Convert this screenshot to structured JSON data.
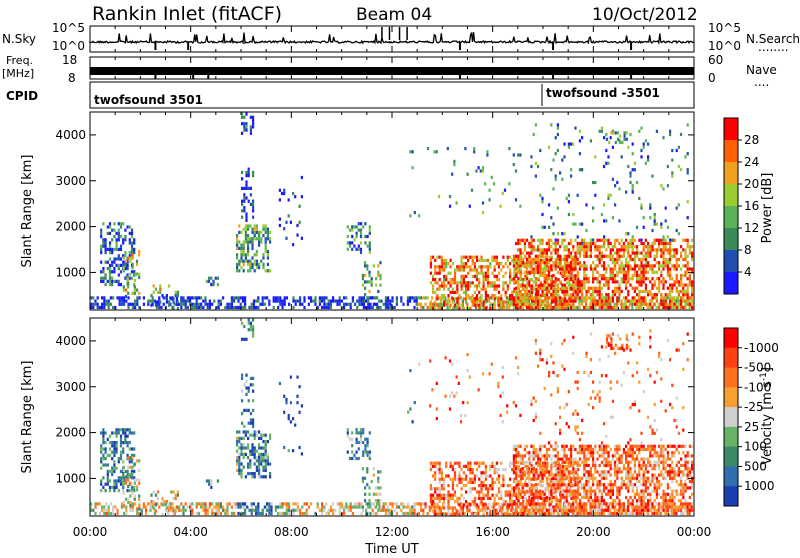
{
  "header": {
    "station": "Rankin Inlet (fitACF)",
    "beam": "Beam 04",
    "date": "10/Oct/2012"
  },
  "noise_panel": {
    "left_label": "N.Sky",
    "right_label": "N.Search",
    "left_ticks": [
      "10^5",
      "10^0"
    ],
    "right_ticks": [
      "10^5",
      "10^0"
    ],
    "right_legend_dots": "........"
  },
  "freq_panel": {
    "left_label": "Freq.",
    "left_unit": "[MHz]",
    "right_label": "Nave",
    "left_ticks": [
      "18",
      "8"
    ],
    "right_ticks": [
      "60",
      "0"
    ],
    "right_legend_dots": "...."
  },
  "cpid_panel": {
    "label": "CPID",
    "entries": [
      {
        "text": "twofsound 3501",
        "start_hour": 0
      },
      {
        "text": "twofsound -3501",
        "start_hour": 18.5
      }
    ]
  },
  "chart_data": [
    {
      "type": "heatmap",
      "ylabel": "Slant Range [km]",
      "yticks": [
        1000,
        2000,
        3000,
        4000
      ],
      "ylim": [
        180,
        4500
      ],
      "xlim_hours": [
        0,
        24
      ],
      "colorbar": {
        "label": "Power [dB]",
        "ticks": [
          "4",
          "8",
          "12",
          "16",
          "20",
          "24",
          "28"
        ],
        "colors": [
          "#1a1aff",
          "#1f4fb0",
          "#3a8a5a",
          "#59b359",
          "#9acd32",
          "#f0a020",
          "#ff6000",
          "#ff0000"
        ]
      }
    },
    {
      "type": "heatmap",
      "ylabel": "Slant Range [km]",
      "yticks": [
        1000,
        2000,
        3000,
        4000
      ],
      "ylim": [
        180,
        4500
      ],
      "xlim_hours": [
        0,
        24
      ],
      "colorbar": {
        "label": "Velocity [m s^-1]",
        "ticks": [
          "1000",
          "500",
          "100",
          "25",
          "-25",
          "-100",
          "-500",
          "-1000"
        ],
        "colors": [
          "#1a3fb0",
          "#2f6fb0",
          "#3a8a6a",
          "#66b366",
          "#cfcfcf",
          "#f5a030",
          "#ff7020",
          "#ff4010",
          "#ff0000"
        ]
      }
    }
  ],
  "x_axis": {
    "ticks": [
      "00:00",
      "04:00",
      "08:00",
      "12:00",
      "16:00",
      "20:00",
      "00:00"
    ],
    "label": "Time UT"
  },
  "colors": {
    "axis": "#000000",
    "background": "#ffffff"
  }
}
